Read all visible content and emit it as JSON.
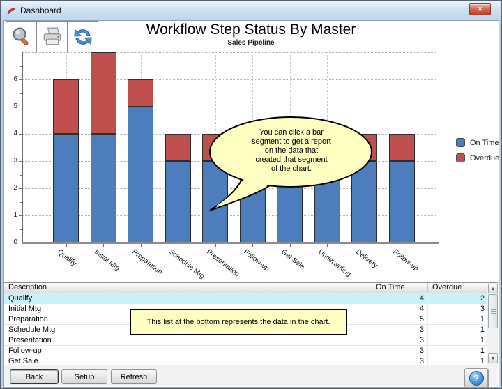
{
  "window": {
    "title": "Dashboard"
  },
  "icons": {
    "close": "✕",
    "help": "?",
    "scroll_up": "▲",
    "scroll_down": "▼",
    "toolbar": [
      "magnifier-icon",
      "printer-icon",
      "refresh-icon"
    ]
  },
  "chart_data": {
    "type": "bar",
    "stacked": true,
    "title": "Workflow Step Status By Master",
    "subtitle": "Sales Pipeline",
    "categories": [
      "Qualify",
      "Initial Mtg",
      "Preparation",
      "Schedule Mtg",
      "Presentation",
      "Follow-up",
      "Get Sale",
      "Underwriting",
      "Delivery",
      "Follow-up"
    ],
    "series": [
      {
        "name": "On Time",
        "color": "#4d7dbd",
        "values": [
          4,
          4,
          5,
          3,
          3,
          3,
          3,
          3,
          3,
          3
        ]
      },
      {
        "name": "Overdue",
        "color": "#c0504d",
        "values": [
          2,
          3,
          1,
          1,
          1,
          1,
          1,
          1,
          1,
          1
        ]
      }
    ],
    "ylim": [
      0,
      7
    ],
    "yticks": [
      0,
      1,
      2,
      3,
      4,
      5,
      6
    ],
    "grid": true,
    "legend_position": "right"
  },
  "annotations": {
    "balloon": "You can click a bar\nsegment to get a report\non the data that\ncreated that segment\nof the chart.",
    "note": "This list at the bottom represents the data in the chart."
  },
  "table": {
    "columns": [
      "Description",
      "On Time",
      "Overdue"
    ],
    "rows": [
      {
        "description": "Qualify",
        "on_time": 4,
        "overdue": 2,
        "selected": true
      },
      {
        "description": "Initial Mtg",
        "on_time": 4,
        "overdue": 3
      },
      {
        "description": "Preparation",
        "on_time": 5,
        "overdue": 1
      },
      {
        "description": "Schedule Mtg",
        "on_time": 3,
        "overdue": 1
      },
      {
        "description": "Presentation",
        "on_time": 3,
        "overdue": 1
      },
      {
        "description": "Follow-up",
        "on_time": 3,
        "overdue": 1
      },
      {
        "description": "Get Sale",
        "on_time": 3,
        "overdue": 1
      }
    ]
  },
  "footer": {
    "back": "Back",
    "setup": "Setup",
    "refresh": "Refresh"
  }
}
